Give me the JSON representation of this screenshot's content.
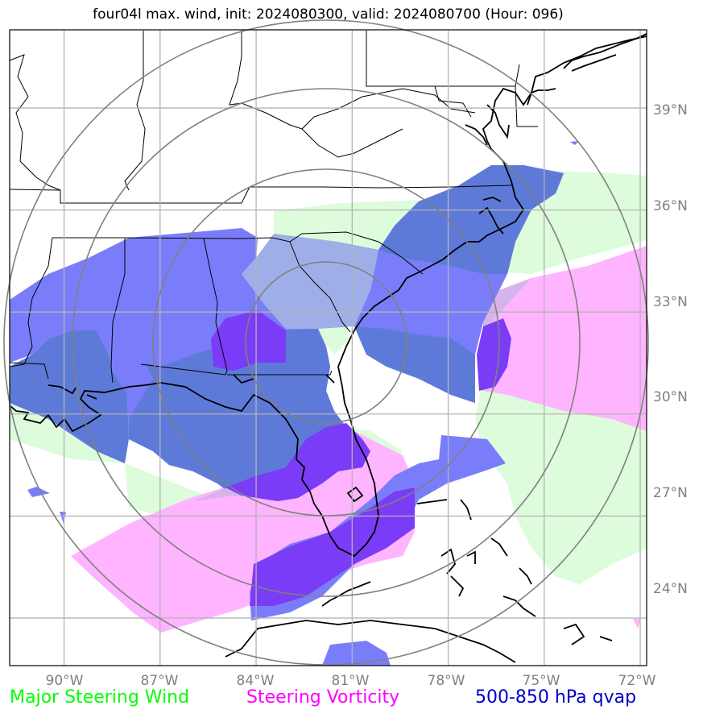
{
  "title": "four04l max. wind, init: 2024080300, valid: 2024080700 (Hour: 096)",
  "axes": {
    "lon_labels": [
      "90°W",
      "87°W",
      "84°W",
      "81°W",
      "78°W",
      "75°W",
      "72°W"
    ],
    "lat_labels": [
      "39°N",
      "36°N",
      "33°N",
      "30°N",
      "27°N",
      "24°N"
    ],
    "lon_range": [
      -91.7,
      -71.8
    ],
    "lat_range": [
      22.6,
      41.3
    ]
  },
  "legend": {
    "wind": {
      "label": "Major Steering Wind",
      "color": "#00ff00"
    },
    "vorticity": {
      "label": "Steering Vorticity",
      "color": "#ff00ff"
    },
    "qvap": {
      "label": "500-850 hPa qvap",
      "color": "#0000cc"
    }
  },
  "colors": {
    "wind_fill": "#dcfcdc",
    "vort_fill": "#ffb4ff",
    "qvap_fill": "#7a7dfa",
    "qvap_core": "#7a3cf6",
    "overlap_fill": "#5e7ad8",
    "ring_stroke": "#808080",
    "grid_stroke": "#b4b4b4"
  }
}
